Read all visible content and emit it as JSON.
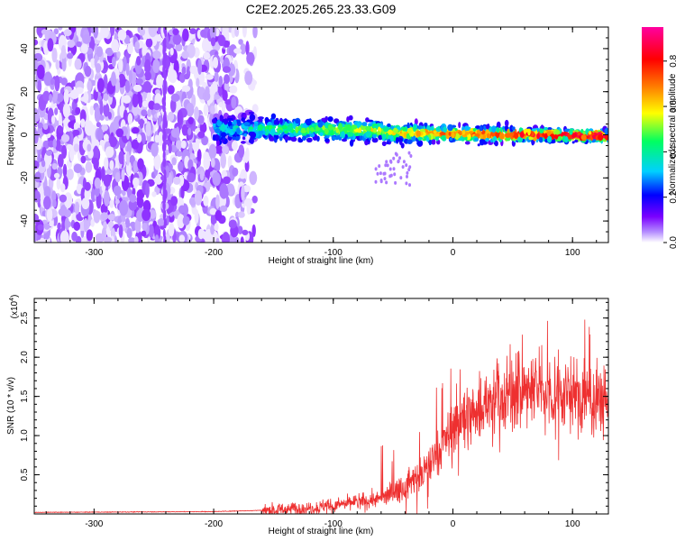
{
  "title": "C2E2.2025.265.23.33.G09",
  "chart_data": [
    {
      "type": "heatmap",
      "xlabel": "Height of straight line (km)",
      "ylabel": "Frequency (Hz)",
      "xlim": [
        -350,
        130
      ],
      "ylim": [
        -50,
        50
      ],
      "xticks": [
        -300,
        -200,
        -100,
        0,
        100
      ],
      "xtick_labels": [
        "-300",
        "-200",
        "-100",
        "0",
        "100"
      ],
      "yticks": [
        -40,
        -20,
        0,
        20,
        40
      ],
      "ytick_labels": [
        "-40",
        "-20",
        "0",
        "20",
        "40"
      ],
      "colorbar": {
        "label": "Normalized spectral amplitude",
        "range": [
          0,
          0.95
        ],
        "ticks": [
          0.0,
          0.2,
          0.4,
          0.6,
          0.8
        ],
        "tick_labels": [
          "0.0",
          "0.2",
          "0.4",
          "0.6",
          "0.8"
        ],
        "colormap": [
          "#ffffff",
          "#b48cff",
          "#7a00ff",
          "#0000ff",
          "#00d0ff",
          "#00ff60",
          "#ffff00",
          "#ff8000",
          "#ff0000",
          "#ff00a0"
        ]
      },
      "description_regions": [
        {
          "x_range": [
            -350,
            -175
          ],
          "freq_range": [
            -50,
            50
          ],
          "amplitude": 0.15
        },
        {
          "x_range": [
            -200,
            130
          ],
          "freq_center": 2,
          "freq_halfwidth": 6,
          "amplitude_range": [
            0.2,
            0.9
          ]
        }
      ]
    },
    {
      "type": "line",
      "xlabel": "Height of straight line (km)",
      "ylabel": "SNR (10 * v/v)",
      "y_multiplier": "(x10",
      "y_multiplier_exp": "4",
      "y_multiplier_close": ")",
      "xlim": [
        -350,
        130
      ],
      "ylim": [
        0,
        2.75
      ],
      "xticks": [
        -300,
        -200,
        -100,
        0,
        100
      ],
      "xtick_labels": [
        "-300",
        "-200",
        "-100",
        "0",
        "100"
      ],
      "yticks": [
        0.5,
        1.0,
        1.5,
        2.0,
        2.5
      ],
      "ytick_labels": [
        "0.5",
        "1.0",
        "1.5",
        "2.0",
        "2.5"
      ],
      "color": "#ee3030",
      "envelope": {
        "x": [
          -350,
          -200,
          -150,
          -100,
          -60,
          -40,
          -20,
          -10,
          0,
          20,
          50,
          75,
          100,
          130
        ],
        "y": [
          0.02,
          0.03,
          0.05,
          0.1,
          0.2,
          0.35,
          0.6,
          0.85,
          1.1,
          1.35,
          1.55,
          1.6,
          1.5,
          1.45
        ]
      }
    }
  ]
}
